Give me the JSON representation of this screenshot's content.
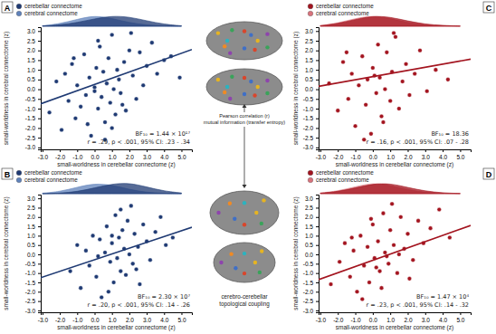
{
  "chart_data": [
    {
      "type": "scatter",
      "panel": "A",
      "xlabel": "small-worldness in cerebellar connectome (z)",
      "ylabel": "small-worldness in cerebral connectome (z)",
      "annotations": [
        "BF₁₀ = 1.44 × 10¹⁷",
        "r = .29, p < .001, 95% CI: .23 - .34"
      ],
      "xlim": [
        -3.1,
        5.6
      ],
      "ylim": [
        -3.1,
        3.2
      ],
      "xticks": [
        {
          "value": -3,
          "label": "-3.0"
        },
        {
          "value": -2,
          "label": "-2.0"
        },
        {
          "value": -1,
          "label": "-1.0"
        },
        {
          "value": 0,
          "label": "0.0"
        },
        {
          "value": 1,
          "label": "1.0"
        },
        {
          "value": 2,
          "label": "2.0"
        },
        {
          "value": 3,
          "label": "3.0"
        },
        {
          "value": 4,
          "label": "4.0"
        },
        {
          "value": 5,
          "label": "5.0"
        }
      ],
      "yticks": [
        {
          "value": -3,
          "label": "-3.0"
        },
        {
          "value": -2.5,
          "label": "-2.5"
        },
        {
          "value": -2,
          "label": "-2.0"
        },
        {
          "value": -1.5,
          "label": "-1.5"
        },
        {
          "value": -1,
          "label": "-1.0"
        },
        {
          "value": -0.5,
          "label": "-0.5"
        },
        {
          "value": 0,
          "label": "0.0"
        },
        {
          "value": 0.5,
          "label": "0.5"
        },
        {
          "value": 1,
          "label": "1.0"
        },
        {
          "value": 1.5,
          "label": "1.5"
        },
        {
          "value": 2,
          "label": "2.0"
        },
        {
          "value": 2.5,
          "label": "2.5"
        },
        {
          "value": 3,
          "label": "3.0"
        }
      ],
      "marker": "circle",
      "points": {
        "color": "#1f3a73",
        "x": [
          -2.6,
          -2.2,
          -1.9,
          -1.7,
          -1.5,
          -1.3,
          -1.1,
          -1.0,
          -0.8,
          -0.6,
          -0.5,
          -0.3,
          -0.2,
          0.0,
          0.1,
          0.2,
          0.3,
          0.4,
          0.5,
          0.6,
          0.7,
          0.8,
          0.9,
          1.0,
          1.1,
          1.2,
          1.3,
          1.4,
          1.5,
          1.7,
          1.8,
          2.0,
          2.2,
          2.4,
          2.6,
          2.8,
          3.0,
          3.3,
          3.6,
          4.0,
          4.4,
          4.9,
          0.6,
          0.2,
          -0.4,
          1.6,
          1.0,
          0.0,
          2.1,
          -1.2
        ],
        "y": [
          -1.2,
          0.4,
          -2.1,
          0.8,
          -0.6,
          1.3,
          -1.5,
          0.2,
          -0.9,
          1.8,
          -0.3,
          0.6,
          -2.4,
          0.1,
          1.1,
          -1.0,
          2.2,
          -0.4,
          0.9,
          -1.7,
          0.3,
          1.6,
          -0.7,
          2.8,
          0.0,
          -1.3,
          1.0,
          0.5,
          -0.2,
          1.4,
          -1.1,
          2.0,
          0.7,
          -0.5,
          1.9,
          0.2,
          1.2,
          2.4,
          0.8,
          1.5,
          1.7,
          0.6,
          -2.6,
          2.5,
          -1.8,
          -0.8,
          -2.0,
          -0.1,
          2.9,
          1.6
        ]
      },
      "fit": {
        "x": [
          -3.1,
          5.6
        ],
        "y": [
          -0.75,
          2.05
        ]
      },
      "series": [
        {
          "name": "cerebellar connectome",
          "color": "#1f3a73",
          "x": [
            -3,
            -2,
            -1,
            0,
            1,
            2,
            3,
            4,
            5
          ],
          "values": [
            0.01,
            0.05,
            0.15,
            0.3,
            0.42,
            0.38,
            0.22,
            0.08,
            0.02
          ]
        },
        {
          "name": "cerebral connectome",
          "color": "#5f82bb",
          "x": [
            -3,
            -2,
            -1,
            0,
            1,
            2,
            3,
            4,
            5
          ],
          "values": [
            0.02,
            0.1,
            0.28,
            0.44,
            0.32,
            0.14,
            0.05,
            0.01,
            0
          ]
        }
      ]
    },
    {
      "type": "scatter",
      "panel": "B",
      "xlabel": "small-worldness in cerebellar connectome (z)",
      "ylabel": "small-worldness in cerebral connectome (z)",
      "annotations": [
        "BF₁₀ = 2.30 × 10⁷",
        "r = .20, p < .001, 95% CI: .14 - .26"
      ],
      "xlim": [
        -3.1,
        5.6
      ],
      "ylim": [
        -3.1,
        3.2
      ],
      "xticks": [
        {
          "value": -3,
          "label": "-3.0"
        },
        {
          "value": -2,
          "label": "-2.0"
        },
        {
          "value": -1,
          "label": "-1.0"
        },
        {
          "value": 0,
          "label": "0.0"
        },
        {
          "value": 1,
          "label": "1.0"
        },
        {
          "value": 2,
          "label": "2.0"
        },
        {
          "value": 3,
          "label": "3.0"
        },
        {
          "value": 4,
          "label": "4.0"
        },
        {
          "value": 5,
          "label": "5.0"
        }
      ],
      "yticks": [
        {
          "value": -3,
          "label": "-3.0"
        },
        {
          "value": -2.5,
          "label": "-2.5"
        },
        {
          "value": -2,
          "label": "-2.0"
        },
        {
          "value": -1.5,
          "label": "-1.5"
        },
        {
          "value": -1,
          "label": "-1.0"
        },
        {
          "value": -0.5,
          "label": "-0.5"
        },
        {
          "value": 0,
          "label": "0.0"
        },
        {
          "value": 0.5,
          "label": "0.5"
        },
        {
          "value": 1,
          "label": "1.0"
        },
        {
          "value": 1.5,
          "label": "1.5"
        },
        {
          "value": 2,
          "label": "2.0"
        },
        {
          "value": 2.5,
          "label": "2.5"
        },
        {
          "value": 3,
          "label": "3.0"
        }
      ],
      "marker": "circle",
      "points": {
        "color": "#1f3a73",
        "x": [
          -1.4,
          -1.0,
          -0.8,
          -0.5,
          -0.3,
          -0.1,
          0.1,
          0.3,
          0.4,
          0.6,
          0.7,
          0.9,
          1.0,
          1.1,
          1.2,
          1.3,
          1.4,
          1.5,
          1.6,
          1.7,
          1.8,
          1.9,
          2.0,
          2.1,
          2.2,
          2.3,
          2.5,
          2.6,
          2.8,
          3.0,
          3.2,
          3.5,
          3.8,
          4.1,
          4.5,
          0.8,
          1.5,
          2.4,
          1.0,
          0.2
        ],
        "y": [
          -0.9,
          0.5,
          -1.8,
          0.2,
          -0.6,
          1.0,
          -1.2,
          0.8,
          -2.3,
          0.1,
          1.5,
          -0.4,
          0.6,
          -1.5,
          2.1,
          -0.2,
          0.9,
          -0.9,
          1.3,
          0.3,
          -1.1,
          1.8,
          0.0,
          2.6,
          -0.5,
          1.1,
          0.4,
          -1.6,
          1.6,
          0.7,
          -0.3,
          1.2,
          2.0,
          0.5,
          0.9,
          -2.0,
          2.4,
          -0.8,
          1.0,
          -0.1
        ]
      },
      "fit": {
        "x": [
          -3.1,
          5.6
        ],
        "y": [
          -1.25,
          1.45
        ]
      },
      "series": [
        {
          "name": "cerebellar connectome",
          "color": "#1f3a73",
          "x": [
            -3,
            -2,
            -1,
            0,
            1,
            2,
            3,
            4,
            5
          ],
          "values": [
            0,
            0.02,
            0.08,
            0.22,
            0.38,
            0.42,
            0.26,
            0.1,
            0.03
          ]
        },
        {
          "name": "cerebral connectome",
          "color": "#5f82bb",
          "x": [
            -3,
            -2,
            -1,
            0,
            1,
            2,
            3,
            4,
            5
          ],
          "values": [
            0.02,
            0.08,
            0.25,
            0.4,
            0.34,
            0.16,
            0.05,
            0.01,
            0
          ]
        }
      ]
    },
    {
      "type": "scatter",
      "panel": "C",
      "xlabel": "small-worldness in cerebellar connectome (z)",
      "ylabel": "small-worldness in cerebral connectome (z)",
      "annotations": [
        "BF₁₀ = 18.36",
        "r = .16, p < .001, 95% CI: .07 - .28"
      ],
      "xlim": [
        -3.1,
        5.6
      ],
      "ylim": [
        -3.1,
        3.2
      ],
      "xticks": [
        {
          "value": -3,
          "label": "-3.0"
        },
        {
          "value": -2,
          "label": "-2.0"
        },
        {
          "value": -1,
          "label": "-1.0"
        },
        {
          "value": 0,
          "label": "0.0"
        },
        {
          "value": 1,
          "label": "1.0"
        },
        {
          "value": 2,
          "label": "2.0"
        },
        {
          "value": 3,
          "label": "3.0"
        },
        {
          "value": 4,
          "label": "4.0"
        },
        {
          "value": 5,
          "label": "5.0"
        }
      ],
      "yticks": [
        {
          "value": -3,
          "label": "-3.0"
        },
        {
          "value": -2.5,
          "label": "-2.5"
        },
        {
          "value": -2,
          "label": "-2.0"
        },
        {
          "value": -1.5,
          "label": "-1.5"
        },
        {
          "value": -1,
          "label": "-1.0"
        },
        {
          "value": -0.5,
          "label": "-0.5"
        },
        {
          "value": 0,
          "label": "0.0"
        },
        {
          "value": 0.5,
          "label": "0.5"
        },
        {
          "value": 1,
          "label": "1.0"
        },
        {
          "value": 1.5,
          "label": "1.5"
        },
        {
          "value": 2,
          "label": "2.0"
        },
        {
          "value": 2.5,
          "label": "2.5"
        },
        {
          "value": 3,
          "label": "3.0"
        }
      ],
      "marker": "circle",
      "points": {
        "color": "#a3141f",
        "x": [
          -2.5,
          -2.0,
          -1.7,
          -1.4,
          -1.2,
          -1.0,
          -0.8,
          -0.6,
          -0.4,
          -0.3,
          -0.1,
          0.0,
          0.2,
          0.3,
          0.4,
          0.5,
          0.7,
          0.8,
          1.0,
          1.1,
          1.3,
          1.5,
          1.7,
          1.9,
          2.1,
          2.4,
          2.7,
          3.1,
          3.6,
          4.3,
          -0.5,
          0.6,
          1.2,
          -1.5,
          0.1
        ],
        "y": [
          0.3,
          -1.1,
          1.4,
          -0.5,
          0.8,
          -1.9,
          0.2,
          1.7,
          -0.8,
          0.5,
          -2.3,
          1.1,
          -0.2,
          2.3,
          0.6,
          -1.4,
          0.0,
          1.9,
          -0.6,
          0.9,
          2.7,
          -1.0,
          0.4,
          1.3,
          -0.3,
          0.8,
          2.0,
          -0.1,
          1.0,
          0.5,
          -2.6,
          -1.7,
          2.9,
          1.9,
          0.7
        ]
      },
      "fit": {
        "x": [
          -3.1,
          5.6
        ],
        "y": [
          0.15,
          1.55
        ]
      },
      "series": [
        {
          "name": "cerebellar connectome",
          "color": "#a3141f",
          "x": [
            -3,
            -2,
            -1,
            0,
            1,
            2,
            3,
            4,
            5
          ],
          "values": [
            0.02,
            0.1,
            0.26,
            0.4,
            0.36,
            0.2,
            0.08,
            0.03,
            0.01
          ]
        },
        {
          "name": "cerebral connectome",
          "color": "#d9737c",
          "x": [
            -3,
            -2,
            -1,
            0,
            1,
            2,
            3,
            4,
            5
          ],
          "values": [
            0.03,
            0.12,
            0.3,
            0.42,
            0.3,
            0.14,
            0.05,
            0.02,
            0
          ]
        }
      ]
    },
    {
      "type": "scatter",
      "panel": "D",
      "xlabel": "small-worldness in cerebellar connectome (z)",
      "ylabel": "small-worldness in cerebral connectome (z)",
      "annotations": [
        "BF₁₀ = 1.47 × 10⁴",
        "r = .23, p < .001, 95% CI: .14 - .32"
      ],
      "xlim": [
        -3.1,
        5.6
      ],
      "ylim": [
        -3.1,
        3.2
      ],
      "xticks": [
        {
          "value": -3,
          "label": "-3.0"
        },
        {
          "value": -2,
          "label": "-2.0"
        },
        {
          "value": -1,
          "label": "-1.0"
        },
        {
          "value": 0,
          "label": "0.0"
        },
        {
          "value": 1,
          "label": "1.0"
        },
        {
          "value": 2,
          "label": "2.0"
        },
        {
          "value": 3,
          "label": "3.0"
        },
        {
          "value": 4,
          "label": "4.0"
        },
        {
          "value": 5,
          "label": "5.0"
        }
      ],
      "yticks": [
        {
          "value": -3,
          "label": "-3.0"
        },
        {
          "value": -2.5,
          "label": "-2.5"
        },
        {
          "value": -2,
          "label": "-2.0"
        },
        {
          "value": -1.5,
          "label": "-1.5"
        },
        {
          "value": -1,
          "label": "-1.0"
        },
        {
          "value": -0.5,
          "label": "-0.5"
        },
        {
          "value": 0,
          "label": "0.0"
        },
        {
          "value": 0.5,
          "label": "0.5"
        },
        {
          "value": 1,
          "label": "1.0"
        },
        {
          "value": 1.5,
          "label": "1.5"
        },
        {
          "value": 2,
          "label": "2.0"
        },
        {
          "value": 2.5,
          "label": "2.5"
        },
        {
          "value": 3,
          "label": "3.0"
        }
      ],
      "marker": "circle",
      "points": {
        "color": "#a3141f",
        "x": [
          -2.4,
          -1.9,
          -1.6,
          -1.3,
          -1.1,
          -0.9,
          -0.7,
          -0.5,
          -0.3,
          -0.2,
          0.0,
          0.1,
          0.3,
          0.4,
          0.6,
          0.7,
          0.9,
          1.0,
          1.2,
          1.4,
          1.6,
          1.8,
          2.0,
          2.3,
          2.6,
          2.9,
          3.3,
          3.8,
          4.4,
          -0.6,
          0.5,
          1.1,
          -1.2,
          0.2,
          2.1,
          1.5,
          -0.1,
          0.8
        ],
        "y": [
          -1.6,
          -0.4,
          0.6,
          -1.2,
          0.2,
          -2.0,
          1.0,
          -0.6,
          0.4,
          -1.5,
          1.6,
          -0.2,
          0.7,
          -0.9,
          2.2,
          0.1,
          -0.5,
          1.3,
          0.5,
          -1.0,
          2.0,
          0.3,
          1.1,
          -0.3,
          1.8,
          0.6,
          1.4,
          2.4,
          0.9,
          -2.4,
          -1.8,
          2.7,
          0.9,
          -0.7,
          -1.3,
          0.0,
          1.9,
          -0.1
        ]
      },
      "fit": {
        "x": [
          -3.1,
          5.6
        ],
        "y": [
          -1.35,
          1.55
        ]
      },
      "series": [
        {
          "name": "cerebellar connectome",
          "color": "#a3141f",
          "x": [
            -3,
            -2,
            -1,
            0,
            1,
            2,
            3,
            4,
            5
          ],
          "values": [
            0.02,
            0.08,
            0.22,
            0.38,
            0.4,
            0.24,
            0.1,
            0.03,
            0.01
          ]
        },
        {
          "name": "cerebral connectome",
          "color": "#d9737c",
          "x": [
            -3,
            -2,
            -1,
            0,
            1,
            2,
            3,
            4,
            5
          ],
          "values": [
            0.03,
            0.1,
            0.27,
            0.42,
            0.33,
            0.15,
            0.05,
            0.02,
            0
          ]
        }
      ]
    }
  ],
  "center": {
    "top_labels": [
      "Pearson correlation (r)",
      "mutual information (transfer entropy)"
    ],
    "bottom_labels": [
      "cerebro-cerebellar",
      "topological coupling"
    ]
  }
}
